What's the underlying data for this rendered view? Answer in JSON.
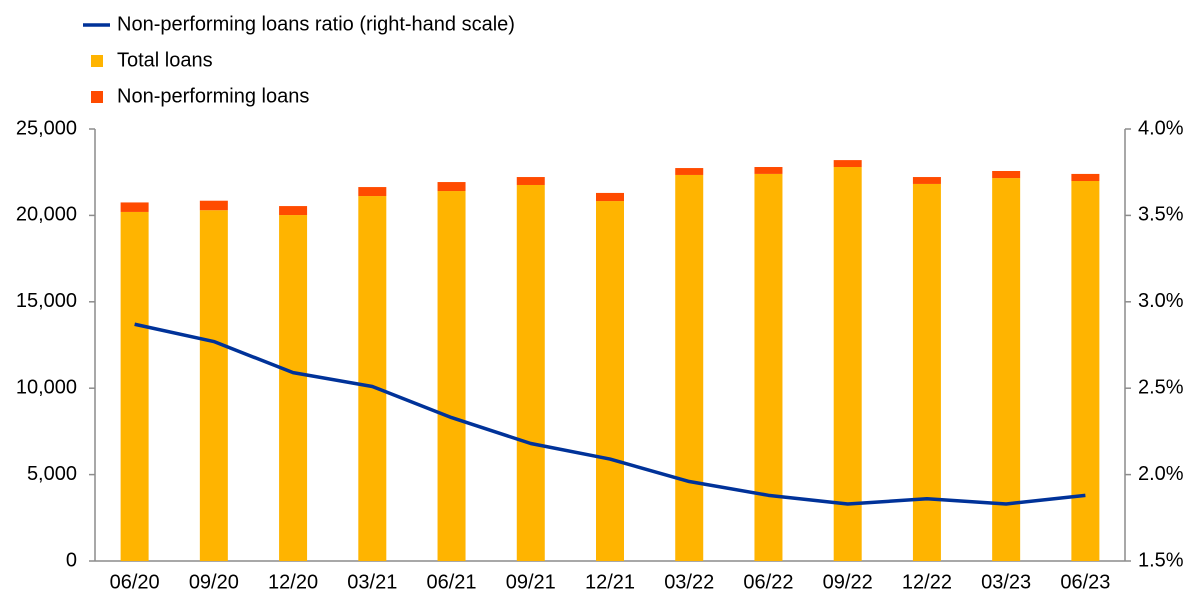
{
  "chart_data": {
    "type": "bar",
    "categories": [
      "06/20",
      "09/20",
      "12/20",
      "03/21",
      "06/21",
      "09/21",
      "12/21",
      "03/22",
      "06/22",
      "09/22",
      "12/22",
      "03/23",
      "06/23"
    ],
    "series": [
      {
        "name": "Non-performing loans ratio (right-hand scale)",
        "type": "line",
        "axis": "y2",
        "color": "#003299",
        "values": [
          2.87,
          2.77,
          2.59,
          2.51,
          2.33,
          2.18,
          2.09,
          1.96,
          1.88,
          1.83,
          1.86,
          1.83,
          1.88
        ]
      },
      {
        "name": "Total loans",
        "type": "bar",
        "color": "#ffb400",
        "values": [
          20200,
          20300,
          20020,
          21120,
          21410,
          21760,
          20830,
          22340,
          22400,
          22800,
          21820,
          22160,
          21990
        ]
      },
      {
        "name": "Non-performing loans",
        "type": "bar",
        "color": "#ff4b00",
        "values": [
          550,
          550,
          520,
          520,
          520,
          460,
          470,
          400,
          400,
          400,
          400,
          410,
          410
        ]
      }
    ],
    "stacked": true,
    "ylim": [
      0,
      25000
    ],
    "yticks": [
      0,
      {
        "value": 5000,
        "label": "5,000"
      },
      {
        "value": 10000,
        "label": "10,000"
      },
      {
        "value": 15000,
        "label": "15,000"
      },
      {
        "value": 20000,
        "label": "20,000"
      },
      {
        "value": 25000,
        "label": "25,000"
      }
    ],
    "y2lim": [
      1.5,
      4.0
    ],
    "y2ticks": [
      {
        "value": 1.5,
        "label": "1.5%"
      },
      {
        "value": 2.0,
        "label": "2.0%"
      },
      {
        "value": 2.5,
        "label": "2.5%"
      },
      {
        "value": 3.0,
        "label": "3.0%"
      },
      {
        "value": 3.5,
        "label": "3.5%"
      },
      {
        "value": 4.0,
        "label": "4.0%"
      }
    ],
    "grid": false,
    "legend": "top-left"
  }
}
